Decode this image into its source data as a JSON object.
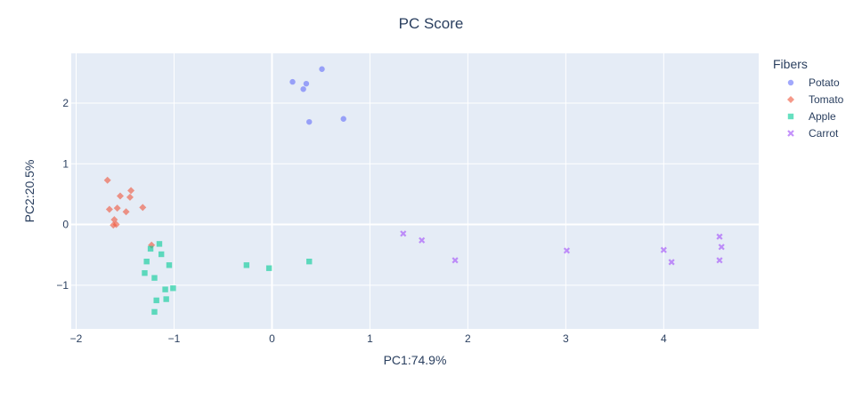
{
  "chart_data": {
    "type": "scatter",
    "title": "PC Score",
    "xlabel": "PC1:74.9%",
    "ylabel": "PC2:20.5%",
    "xlim": [
      -2.05,
      4.97
    ],
    "ylim": [
      -1.72,
      2.82
    ],
    "x_ticks": [
      -2,
      -1,
      0,
      1,
      2,
      3,
      4
    ],
    "y_ticks": [
      -1,
      0,
      1,
      2
    ],
    "x_tick_labels": [
      "−2",
      "−1",
      "0",
      "1",
      "2",
      "3",
      "4"
    ],
    "y_tick_labels": [
      "−1",
      "0",
      "1",
      "2"
    ],
    "grid": true,
    "legend_title": "Fibers",
    "legend_position": "right",
    "series": [
      {
        "name": "Potato",
        "marker": "circle",
        "color": "#636efa",
        "x": [
          0.21,
          0.35,
          0.32,
          0.51,
          0.38,
          0.73
        ],
        "y": [
          2.35,
          2.32,
          2.23,
          2.56,
          1.69,
          1.74
        ]
      },
      {
        "name": "Tomato",
        "marker": "diamond",
        "color": "#ef553b",
        "x": [
          -1.68,
          -1.66,
          -1.44,
          -1.55,
          -1.45,
          -1.32,
          -1.58,
          -1.49,
          -1.61,
          -1.59,
          -1.62,
          -1.23
        ],
        "y": [
          0.73,
          0.25,
          0.56,
          0.47,
          0.45,
          0.28,
          0.27,
          0.21,
          0.08,
          0.0,
          -0.01,
          -0.34
        ]
      },
      {
        "name": "Apple",
        "marker": "square",
        "color": "#00cc96",
        "x": [
          -1.15,
          -1.24,
          -1.13,
          -1.28,
          -1.05,
          -1.3,
          -1.2,
          -1.09,
          -1.01,
          -1.18,
          -1.08,
          -1.2,
          -0.26,
          -0.03,
          0.38
        ],
        "y": [
          -0.32,
          -0.4,
          -0.49,
          -0.61,
          -0.67,
          -0.8,
          -0.88,
          -1.07,
          -1.05,
          -1.25,
          -1.23,
          -1.44,
          -0.67,
          -0.72,
          -0.61
        ]
      },
      {
        "name": "Carrot",
        "marker": "x",
        "color": "#ab63fa",
        "x": [
          1.34,
          1.53,
          1.87,
          3.01,
          4.0,
          4.08,
          4.57,
          4.59,
          4.57
        ],
        "y": [
          -0.15,
          -0.26,
          -0.59,
          -0.43,
          -0.42,
          -0.62,
          -0.2,
          -0.37,
          -0.59
        ]
      }
    ]
  }
}
